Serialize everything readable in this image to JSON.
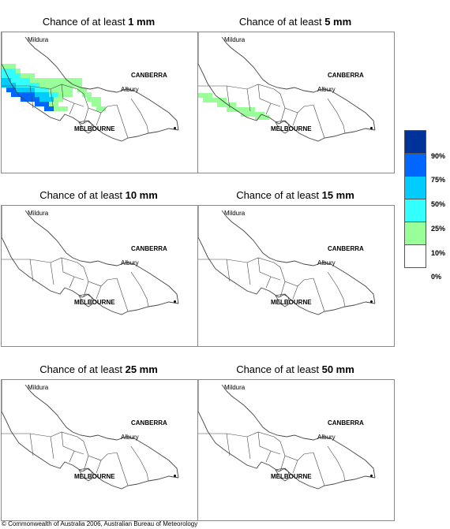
{
  "panels": [
    {
      "title_prefix": "Chance of at least ",
      "threshold": "1 mm",
      "shading": "heavy"
    },
    {
      "title_prefix": "Chance of at least ",
      "threshold": "5 mm",
      "shading": "light"
    },
    {
      "title_prefix": "Chance of at least ",
      "threshold": "10 mm",
      "shading": "none"
    },
    {
      "title_prefix": "Chance of at least ",
      "threshold": "15 mm",
      "shading": "none"
    },
    {
      "title_prefix": "Chance of at least ",
      "threshold": "25 mm",
      "shading": "none"
    },
    {
      "title_prefix": "Chance of at least ",
      "threshold": "50 mm",
      "shading": "none"
    }
  ],
  "places": {
    "mildura": "Mildura",
    "canberra": "CANBERRA",
    "albury": "Albury",
    "melbourne": "MELBOURNE"
  },
  "legend": {
    "colors": [
      "#003399",
      "#0066ff",
      "#00ccff",
      "#33ffff",
      "#99ff99",
      "#ffffff"
    ],
    "labels": [
      "90%",
      "75%",
      "50%",
      "25%",
      "10%",
      "0%"
    ]
  },
  "footer": "© Commonwealth of Australia 2006, Australian Bureau of Meteorology"
}
